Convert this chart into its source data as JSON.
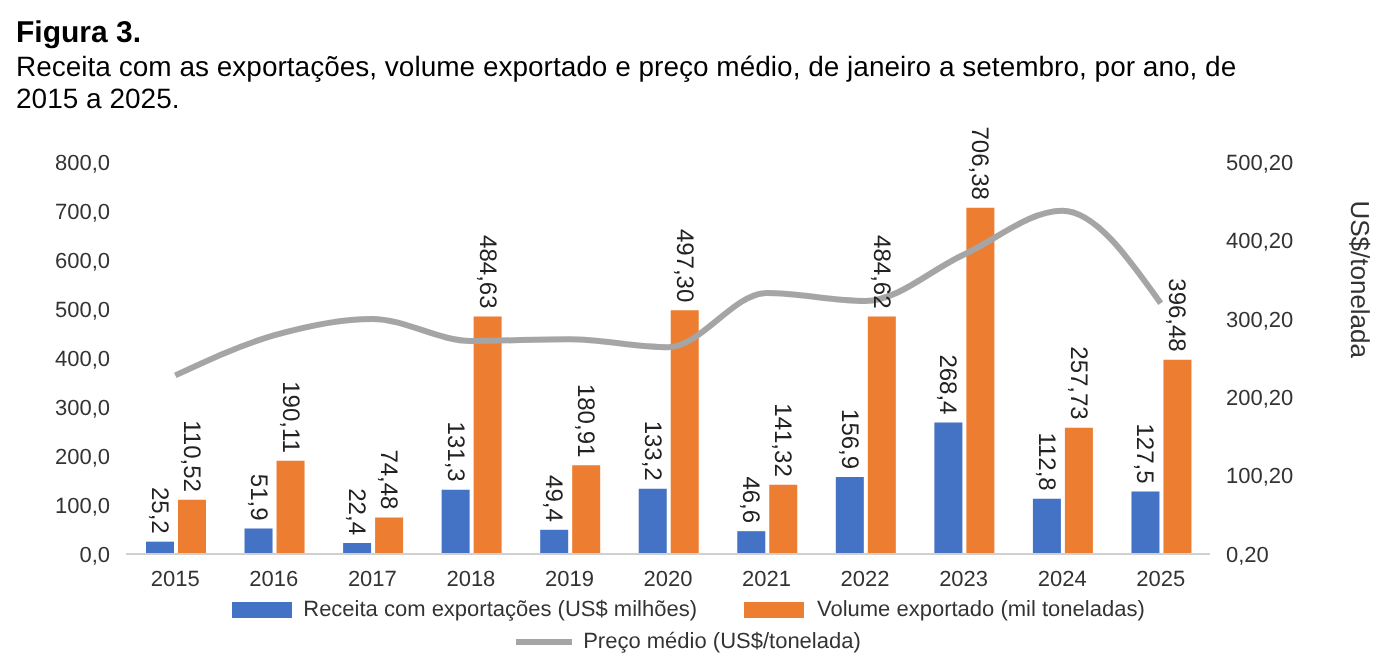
{
  "chart_data": {
    "type": "bar",
    "title": "Figura 3.",
    "subtitle": "Receita com as exportações, volume exportado e preço médio, de janeiro a setembro, por ano, de 2015 a 2025.",
    "categories": [
      "2015",
      "2016",
      "2017",
      "2018",
      "2019",
      "2020",
      "2021",
      "2022",
      "2023",
      "2024",
      "2025"
    ],
    "series": [
      {
        "name": "Receita com exportações (US$ milhões)",
        "color": "#4472c4",
        "values": [
          25.2,
          51.9,
          22.4,
          131.3,
          49.4,
          133.2,
          46.6,
          156.9,
          268.4,
          112.8,
          127.5
        ],
        "value_labels": [
          "25,2",
          "51,9",
          "22,4",
          "131,3",
          "49,4",
          "133,2",
          "46,6",
          "156,9",
          "268,4",
          "112,8",
          "127,5"
        ]
      },
      {
        "name": "Volume exportado (mil toneladas)",
        "color": "#ed7d31",
        "values": [
          110.52,
          190.11,
          74.48,
          484.63,
          180.91,
          497.3,
          141.32,
          484.62,
          706.38,
          257.73,
          396.48
        ],
        "value_labels": [
          "110,52",
          "190,11",
          "74,48",
          "484,63",
          "180,91",
          "497,30",
          "141,32",
          "484,62",
          "706,38",
          "257,73",
          "396,48"
        ]
      },
      {
        "name": "Preço médio (US$/tonelada)",
        "color": "#a5a5a5",
        "type": "line",
        "axis": "y2",
        "values": [
          228,
          279,
          300,
          272,
          274,
          264,
          333,
          323,
          382,
          438,
          320
        ]
      }
    ],
    "ylim": [
      0,
      800
    ],
    "yticks": [
      {
        "value": 0,
        "label": "0,0"
      },
      {
        "value": 100,
        "label": "100,0"
      },
      {
        "value": 200,
        "label": "200,0"
      },
      {
        "value": 300,
        "label": "300,0"
      },
      {
        "value": 400,
        "label": "400,0"
      },
      {
        "value": 500,
        "label": "500,0"
      },
      {
        "value": 600,
        "label": "600,0"
      },
      {
        "value": 700,
        "label": "700,0"
      },
      {
        "value": 800,
        "label": "800,0"
      }
    ],
    "y2lim": [
      0.2,
      500.2
    ],
    "y2ticks": [
      {
        "value": 0.2,
        "label": "0,20"
      },
      {
        "value": 100.2,
        "label": "100,20"
      },
      {
        "value": 200.2,
        "label": "200,20"
      },
      {
        "value": 300.2,
        "label": "300,20"
      },
      {
        "value": 400.2,
        "label": "400,20"
      },
      {
        "value": 500.2,
        "label": "500,20"
      }
    ],
    "y2label": "US$/tonelada",
    "legend": "bottom",
    "grid": false,
    "marker": "none",
    "line_style": "solid"
  }
}
